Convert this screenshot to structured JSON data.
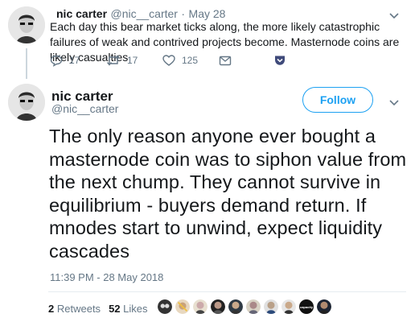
{
  "parent_tweet": {
    "author_name": "nic carter",
    "author_handle": "@nic__carter",
    "separator": "·",
    "date": "May 28",
    "text": "Each day this bear market ticks along, the more likely catastrophic failures of weak and contrived projects become. Masternode coins are likely casualties",
    "actions": {
      "replies": "17",
      "retweets": "17",
      "likes": "125"
    }
  },
  "main_tweet": {
    "author_name": "nic carter",
    "author_handle": "@nic__carter",
    "follow_label": "Follow",
    "text": "The only reason anyone ever bought a masternode coin was to siphon value from the next chump. They cannot survive in equilibrium - buyers demand return. If mnodes start to unwind, expect liquidity cascades",
    "timestamp": "11:39 PM - 28 May 2018",
    "retweets_count": "2",
    "retweets_label": "Retweets",
    "likes_count": "52",
    "likes_label": "Likes",
    "likers_badge_text": "capacity"
  },
  "colors": {
    "accent": "#1da1f2",
    "muted": "#657786",
    "text": "#14171a"
  }
}
